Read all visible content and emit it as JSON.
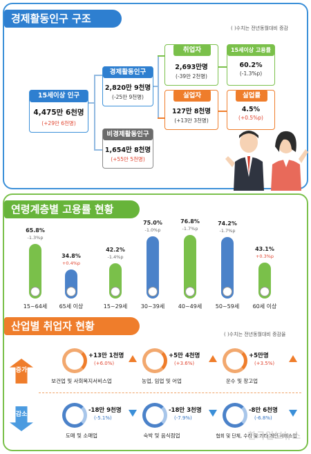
{
  "structure": {
    "title": "경제활동인구 구조",
    "note": "(  )수치는 전년동월대비 증감",
    "pop15": {
      "label": "15세이상 인구",
      "value": "4,475만 6천명",
      "change": "(+29만 6천명)"
    },
    "active": {
      "label": "경제활동인구",
      "value": "2,820만 9천명",
      "change": "(-25만 9천명)"
    },
    "inactive": {
      "label": "비경제활동인구",
      "value": "1,654만 8천명",
      "change": "(+55만 5천명)"
    },
    "employed": {
      "label": "취업자",
      "value": "2,693만명",
      "change": "(-39만 2천명)"
    },
    "emp_rate": {
      "label": "15세이상 고용률",
      "value": "60.2%",
      "change": "(-1.3%p)"
    },
    "unemployed": {
      "label": "실업자",
      "value": "127만 8천명",
      "change": "(+13만 3천명)"
    },
    "unemp_rate": {
      "label": "실업률",
      "value": "4.5%",
      "change": "(+0.5%p)"
    }
  },
  "age": {
    "title": "연령계층별 고용률 현황",
    "bars": [
      {
        "label": "15~64세",
        "pct": "65.8%",
        "change": "-1.3%p",
        "value": 65.8,
        "color": "#7ac04a",
        "dir": "down"
      },
      {
        "label": "65세 이상",
        "pct": "34.8%",
        "change": "+0.4%p",
        "value": 34.8,
        "color": "#4b82c9",
        "dir": "up"
      },
      {
        "label": "15~29세",
        "pct": "42.2%",
        "change": "-1.4%p",
        "value": 42.2,
        "color": "#7ac04a",
        "dir": "down"
      },
      {
        "label": "30~39세",
        "pct": "75.0%",
        "change": "-1.0%p",
        "value": 75.0,
        "color": "#4b82c9",
        "dir": "down"
      },
      {
        "label": "40~49세",
        "pct": "76.8%",
        "change": "-1.7%p",
        "value": 76.8,
        "color": "#7ac04a",
        "dir": "down"
      },
      {
        "label": "50~59세",
        "pct": "74.2%",
        "change": "-1.7%p",
        "value": 74.2,
        "color": "#4b82c9",
        "dir": "down"
      },
      {
        "label": "60세 이상",
        "pct": "43.1%",
        "change": "+0.3%p",
        "value": 43.1,
        "color": "#7ac04a",
        "dir": "up"
      }
    ]
  },
  "industry": {
    "title": "산업별 취업자 현황",
    "note": "(  )수치는 전년동월대비 증감율",
    "increase_label": "증가",
    "decrease_label": "감소",
    "increase": [
      {
        "value": "+13만 1천명",
        "rate": "(+6.0%)",
        "label": "보건업 및 사회복지서비스업"
      },
      {
        "value": "+5만 4천명",
        "rate": "(+3.6%)",
        "label": "농업, 임업 및 어업"
      },
      {
        "value": "+5만명",
        "rate": "(+3.5%)",
        "label": "운수 및 창고업"
      }
    ],
    "decrease": [
      {
        "value": "-18만 9천명",
        "rate": "(-5.1%)",
        "label": "도매 및 소매업"
      },
      {
        "value": "-18만 3천명",
        "rate": "(-7.9%)",
        "label": "숙박 및 음식점업"
      },
      {
        "value": "-8만 6천명",
        "rate": "(-6.8%)",
        "label": "협회 및 단체, 수리 및 기타 개인 서비스업"
      }
    ]
  },
  "watermark": "한국일보뉴스"
}
